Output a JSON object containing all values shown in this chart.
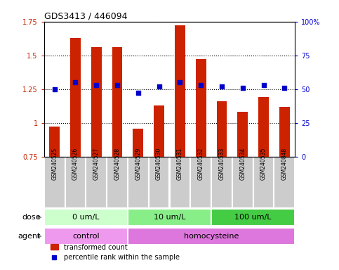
{
  "title": "GDS3413 / 446094",
  "samples": [
    "GSM240525",
    "GSM240526",
    "GSM240527",
    "GSM240528",
    "GSM240529",
    "GSM240530",
    "GSM240531",
    "GSM240532",
    "GSM240533",
    "GSM240534",
    "GSM240535",
    "GSM240848"
  ],
  "transformed_count": [
    0.975,
    1.63,
    1.56,
    1.56,
    0.955,
    1.13,
    1.72,
    1.47,
    1.16,
    1.08,
    1.19,
    1.12
  ],
  "percentile_rank": [
    50,
    55,
    53,
    53,
    47,
    52,
    55,
    53,
    52,
    51,
    53,
    51
  ],
  "bar_bottom": 0.75,
  "ylim_left": [
    0.75,
    1.75
  ],
  "ylim_right": [
    0,
    100
  ],
  "yticks_left": [
    0.75,
    1.0,
    1.25,
    1.5,
    1.75
  ],
  "ytick_labels_left": [
    "0.75",
    "1",
    "1.25",
    "1.5",
    "1.75"
  ],
  "yticks_right": [
    0,
    25,
    50,
    75,
    100
  ],
  "ytick_labels_right": [
    "0",
    "25",
    "50",
    "75",
    "100%"
  ],
  "bar_color": "#cc2200",
  "dot_color": "#0000cc",
  "dose_groups": [
    {
      "label": "0 um/L",
      "start": 0,
      "end": 4,
      "color": "#ccffcc"
    },
    {
      "label": "10 um/L",
      "start": 4,
      "end": 8,
      "color": "#88ee88"
    },
    {
      "label": "100 um/L",
      "start": 8,
      "end": 12,
      "color": "#44cc44"
    }
  ],
  "agent_groups": [
    {
      "label": "control",
      "start": 0,
      "end": 4,
      "color": "#ee99ee"
    },
    {
      "label": "homocysteine",
      "start": 4,
      "end": 12,
      "color": "#dd77dd"
    }
  ],
  "dose_label": "dose",
  "agent_label": "agent",
  "legend_bar_label": "transformed count",
  "legend_dot_label": "percentile rank within the sample",
  "tick_label_color_left": "#cc2200",
  "tick_label_color_right": "#0000cc",
  "sample_bg": "#cccccc",
  "sample_border": "#ffffff"
}
